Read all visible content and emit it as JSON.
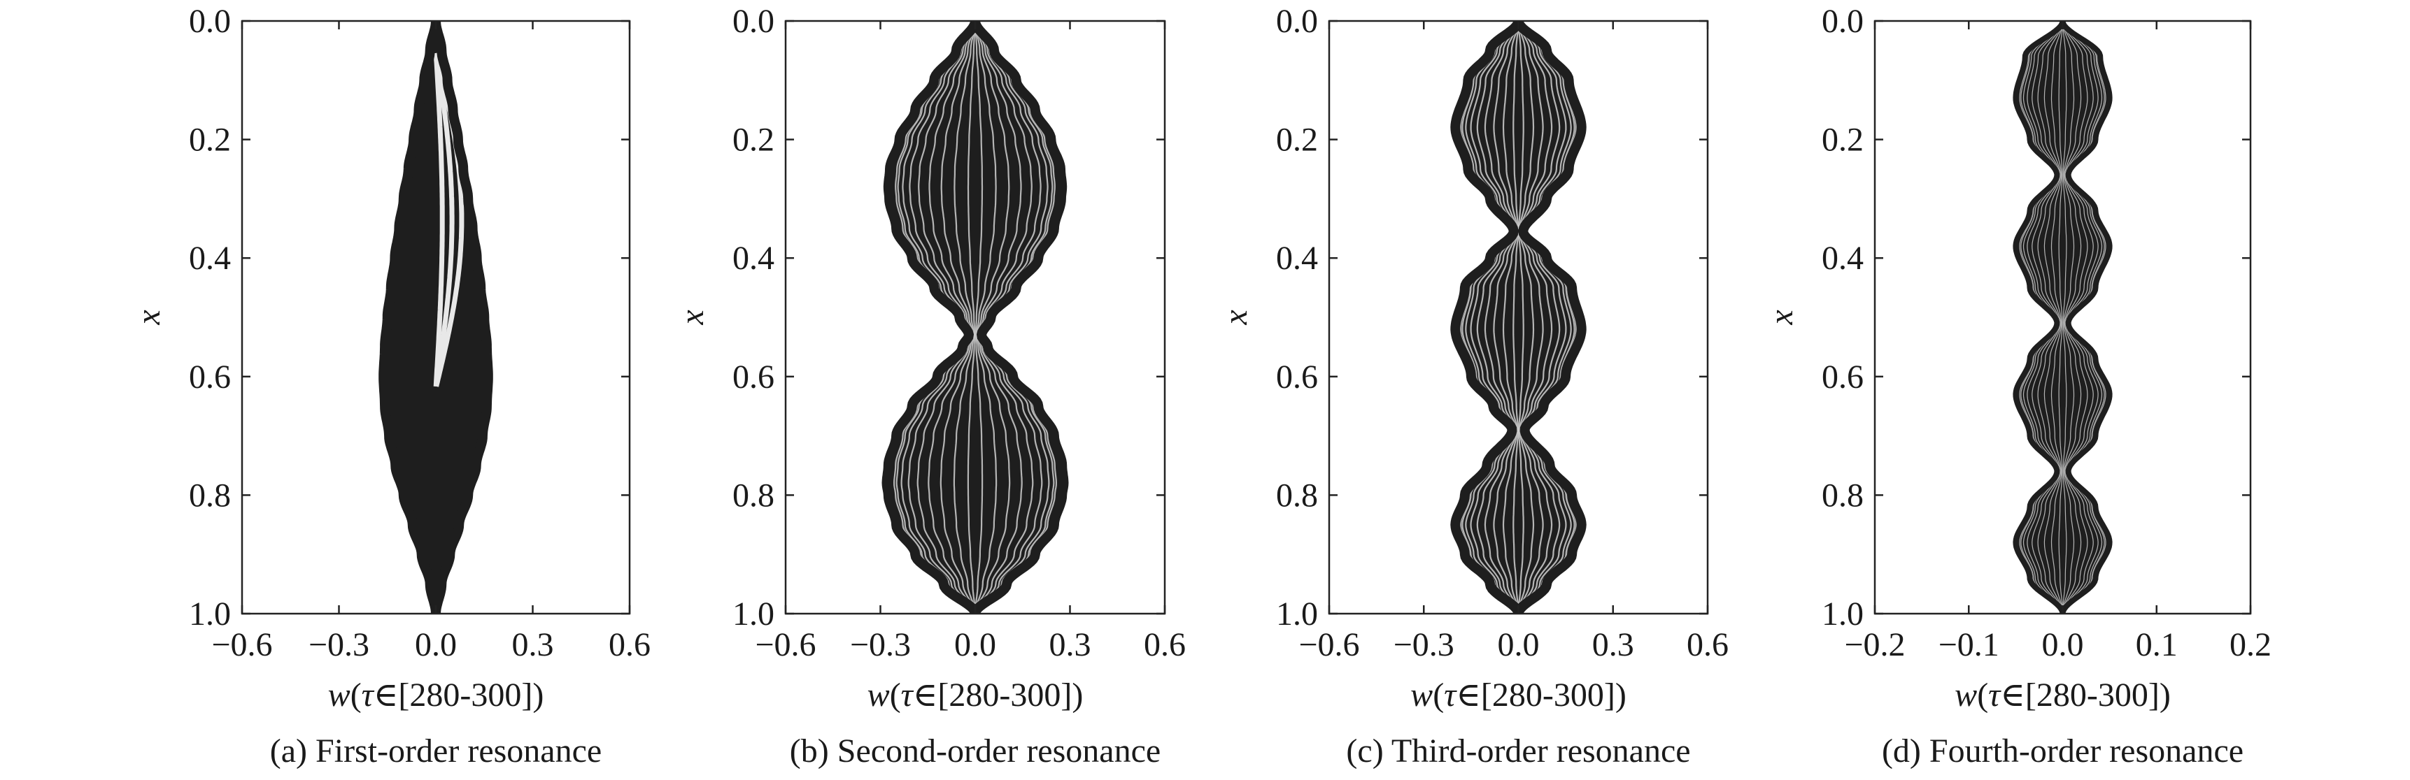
{
  "chart_data": [
    {
      "type": "line",
      "caption": "(a) First-order resonance",
      "xlabel": {
        "var": "w",
        "rest": "(",
        "tau": "τ",
        "range": "∈[280-300])"
      },
      "ylabel": "x",
      "xlim": [
        -0.6,
        0.6
      ],
      "xticks": [
        "−0.6",
        "−0.3",
        "0.0",
        "0.3",
        "0.6"
      ],
      "xtick_values": [
        -0.6,
        -0.3,
        0.0,
        0.3,
        0.6
      ],
      "ylim": [
        0.0,
        1.0
      ],
      "yticks": [
        "0.0",
        "0.2",
        "0.4",
        "0.6",
        "0.8",
        "1.0"
      ],
      "ytick_values": [
        0.0,
        0.2,
        0.4,
        0.6,
        0.8,
        1.0
      ],
      "y_inverted": true,
      "envelope": {
        "x": [
          0.0,
          0.05,
          0.1,
          0.15,
          0.2,
          0.25,
          0.3,
          0.35,
          0.4,
          0.45,
          0.5,
          0.55,
          0.6,
          0.65,
          0.7,
          0.75,
          0.8,
          0.85,
          0.9,
          0.95,
          1.0
        ],
        "max_abs_w": [
          0.0,
          0.018,
          0.036,
          0.053,
          0.069,
          0.085,
          0.1,
          0.114,
          0.127,
          0.139,
          0.15,
          0.158,
          0.162,
          0.158,
          0.145,
          0.125,
          0.1,
          0.072,
          0.044,
          0.018,
          0.0
        ]
      },
      "mode_count": 1,
      "amplitude": 0.16
    },
    {
      "type": "line",
      "caption": "(b) Second-order resonance",
      "xlabel": {
        "var": "w",
        "rest": "(",
        "tau": "τ",
        "range": "∈[280-300])"
      },
      "ylabel": "x",
      "xlim": [
        -0.6,
        0.6
      ],
      "xticks": [
        "−0.6",
        "−0.3",
        "0.0",
        "0.3",
        "0.6"
      ],
      "xtick_values": [
        -0.6,
        -0.3,
        0.0,
        0.3,
        0.6
      ],
      "ylim": [
        0.0,
        1.0
      ],
      "yticks": [
        "0.0",
        "0.2",
        "0.4",
        "0.6",
        "0.8",
        "1.0"
      ],
      "ytick_values": [
        0.0,
        0.2,
        0.4,
        0.6,
        0.8,
        1.0
      ],
      "y_inverted": true,
      "envelope": {
        "x": [
          0.0,
          0.05,
          0.1,
          0.15,
          0.2,
          0.25,
          0.28,
          0.3,
          0.35,
          0.4,
          0.45,
          0.5,
          0.53,
          0.55,
          0.6,
          0.65,
          0.7,
          0.75,
          0.78,
          0.8,
          0.85,
          0.9,
          0.95,
          1.0
        ],
        "max_abs_w": [
          0.0,
          0.06,
          0.13,
          0.19,
          0.24,
          0.27,
          0.275,
          0.272,
          0.25,
          0.2,
          0.13,
          0.05,
          0.02,
          0.04,
          0.12,
          0.2,
          0.25,
          0.275,
          0.28,
          0.275,
          0.25,
          0.19,
          0.1,
          0.0
        ]
      },
      "mode_count": 2,
      "amplitude": 0.28
    },
    {
      "type": "line",
      "caption": "(c) Third-order resonance",
      "xlabel": {
        "var": "w",
        "rest": "(",
        "tau": "τ",
        "range": "∈[280-300])"
      },
      "ylabel": "x",
      "xlim": [
        -0.6,
        0.6
      ],
      "xticks": [
        "−0.6",
        "−0.3",
        "0.0",
        "0.3",
        "0.6"
      ],
      "xtick_values": [
        -0.6,
        -0.3,
        0.0,
        0.3,
        0.6
      ],
      "ylim": [
        0.0,
        1.0
      ],
      "yticks": [
        "0.0",
        "0.2",
        "0.4",
        "0.6",
        "0.8",
        "1.0"
      ],
      "ytick_values": [
        0.0,
        0.2,
        0.4,
        0.6,
        0.8,
        1.0
      ],
      "y_inverted": true,
      "envelope": {
        "x": [
          0.0,
          0.05,
          0.1,
          0.18,
          0.25,
          0.3,
          0.355,
          0.4,
          0.45,
          0.52,
          0.6,
          0.65,
          0.69,
          0.75,
          0.8,
          0.85,
          0.9,
          0.95,
          1.0
        ],
        "max_abs_w": [
          0.0,
          0.09,
          0.16,
          0.2,
          0.16,
          0.09,
          0.015,
          0.09,
          0.17,
          0.2,
          0.15,
          0.08,
          0.02,
          0.1,
          0.17,
          0.2,
          0.17,
          0.09,
          0.0
        ]
      },
      "mode_count": 3,
      "amplitude": 0.2
    },
    {
      "type": "line",
      "caption": "(d) Fourth-order resonance",
      "xlabel": {
        "var": "w",
        "rest": "(",
        "tau": "τ",
        "range": "∈[280-300])"
      },
      "ylabel": "x",
      "xlim": [
        -0.2,
        0.2
      ],
      "xticks": [
        "−0.2",
        "−0.1",
        "0.0",
        "0.1",
        "0.2"
      ],
      "xtick_values": [
        -0.2,
        -0.1,
        0.0,
        0.1,
        0.2
      ],
      "ylim": [
        0.0,
        1.0
      ],
      "yticks": [
        "0.0",
        "0.2",
        "0.4",
        "0.6",
        "0.8",
        "1.0"
      ],
      "ytick_values": [
        0.0,
        0.2,
        0.4,
        0.6,
        0.8,
        1.0
      ],
      "y_inverted": true,
      "envelope": {
        "x": [
          0.0,
          0.06,
          0.13,
          0.2,
          0.26,
          0.32,
          0.38,
          0.45,
          0.51,
          0.57,
          0.63,
          0.7,
          0.76,
          0.82,
          0.88,
          0.94,
          1.0
        ],
        "max_abs_w": [
          0.0,
          0.04,
          0.05,
          0.035,
          0.006,
          0.035,
          0.05,
          0.035,
          0.006,
          0.035,
          0.05,
          0.035,
          0.006,
          0.035,
          0.05,
          0.035,
          0.0
        ]
      },
      "mode_count": 4,
      "amplitude": 0.05
    }
  ]
}
